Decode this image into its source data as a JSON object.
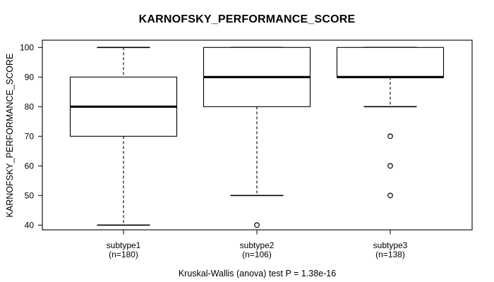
{
  "figure": {
    "title": "KARNOFSKY_PERFORMANCE_SCORE",
    "y_axis_label": "KARNOFSKY_PERFORMANCE_SCORE",
    "caption": "Kruskal-Wallis (anova) test P = 1.38e-16"
  },
  "chart_data": {
    "type": "boxplot",
    "title": "KARNOFSKY_PERFORMANCE_SCORE",
    "xlabel": "",
    "ylabel": "KARNOFSKY_PERFORMANCE_SCORE",
    "ylim": [
      38,
      102
    ],
    "yticks": [
      100,
      90,
      80,
      70,
      60,
      50,
      40
    ],
    "grid": false,
    "legend": false,
    "annotation": "Kruskal-Wallis (anova) test P = 1.38e-16",
    "groups": [
      {
        "label": "subtype1",
        "sublabel": "(n=180)",
        "n": 180,
        "lower_whisker": 40,
        "q1": 70,
        "median": 80,
        "q3": 90,
        "upper_whisker": 100,
        "outliers": []
      },
      {
        "label": "subtype2",
        "sublabel": "(n=106)",
        "n": 106,
        "lower_whisker": 50,
        "q1": 80,
        "median": 90,
        "q3": 100,
        "upper_whisker": 100,
        "outliers": [
          40
        ]
      },
      {
        "label": "subtype3",
        "sublabel": "(n=138)",
        "n": 138,
        "lower_whisker": 80,
        "q1": 90,
        "median": 90,
        "q3": 100,
        "upper_whisker": 100,
        "outliers": [
          70,
          60,
          50
        ]
      }
    ],
    "colors": {
      "stroke": "#000000",
      "box_fill": "#ffffff",
      "median": "#000000",
      "background": "#ffffff"
    }
  }
}
